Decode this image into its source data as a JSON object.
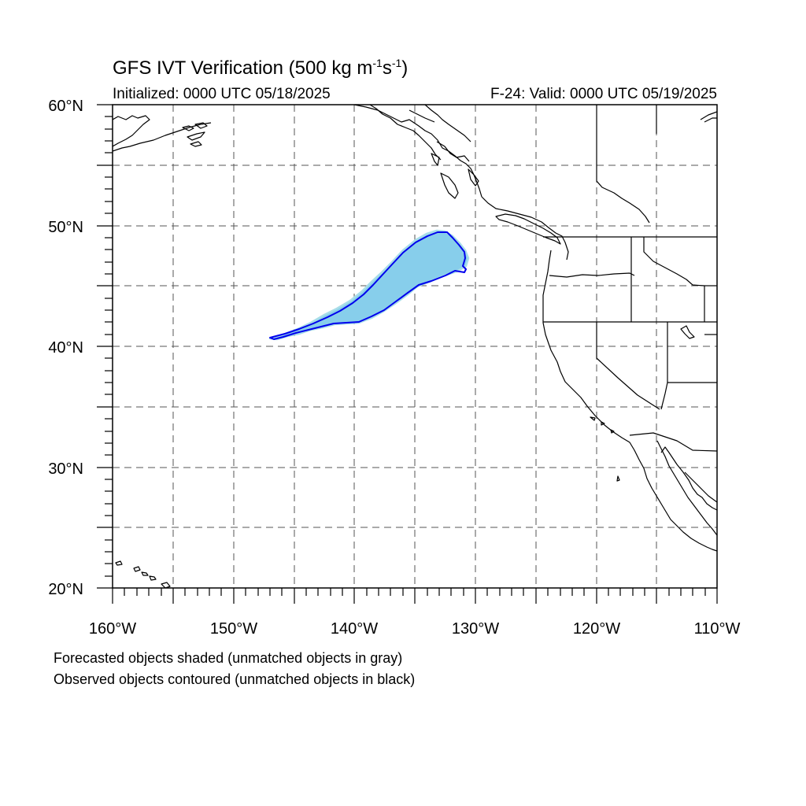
{
  "title": {
    "main": "GFS IVT Verification (500 kg m",
    "sup1": "-1",
    "mid": "s",
    "sup2": "-1",
    "end": ")"
  },
  "subtitle": {
    "initialized": "Initialized: 0000 UTC 05/18/2025",
    "valid": "F-24: Valid: 0000 UTC 05/19/2025"
  },
  "captions": {
    "forecast": "Forecasted objects shaded (unmatched objects in gray)",
    "observed": "Observed objects contoured (unmatched objects in black)"
  },
  "map": {
    "lon_range": [
      -160,
      -110
    ],
    "lat_range": [
      20,
      60
    ],
    "lat_labels": [
      "60°N",
      "50°N",
      "40°N",
      "30°N",
      "20°N"
    ],
    "lon_labels": [
      "160°W",
      "150°W",
      "140°W",
      "130°W",
      "120°W",
      "110°W"
    ],
    "forecast_fill_color": "#87ceeb",
    "forecast_edge_color": "#a8dde8",
    "observed_contour_color": "#0000ee",
    "coast_color": "#000000",
    "grid": "dashed every 5 degrees"
  }
}
